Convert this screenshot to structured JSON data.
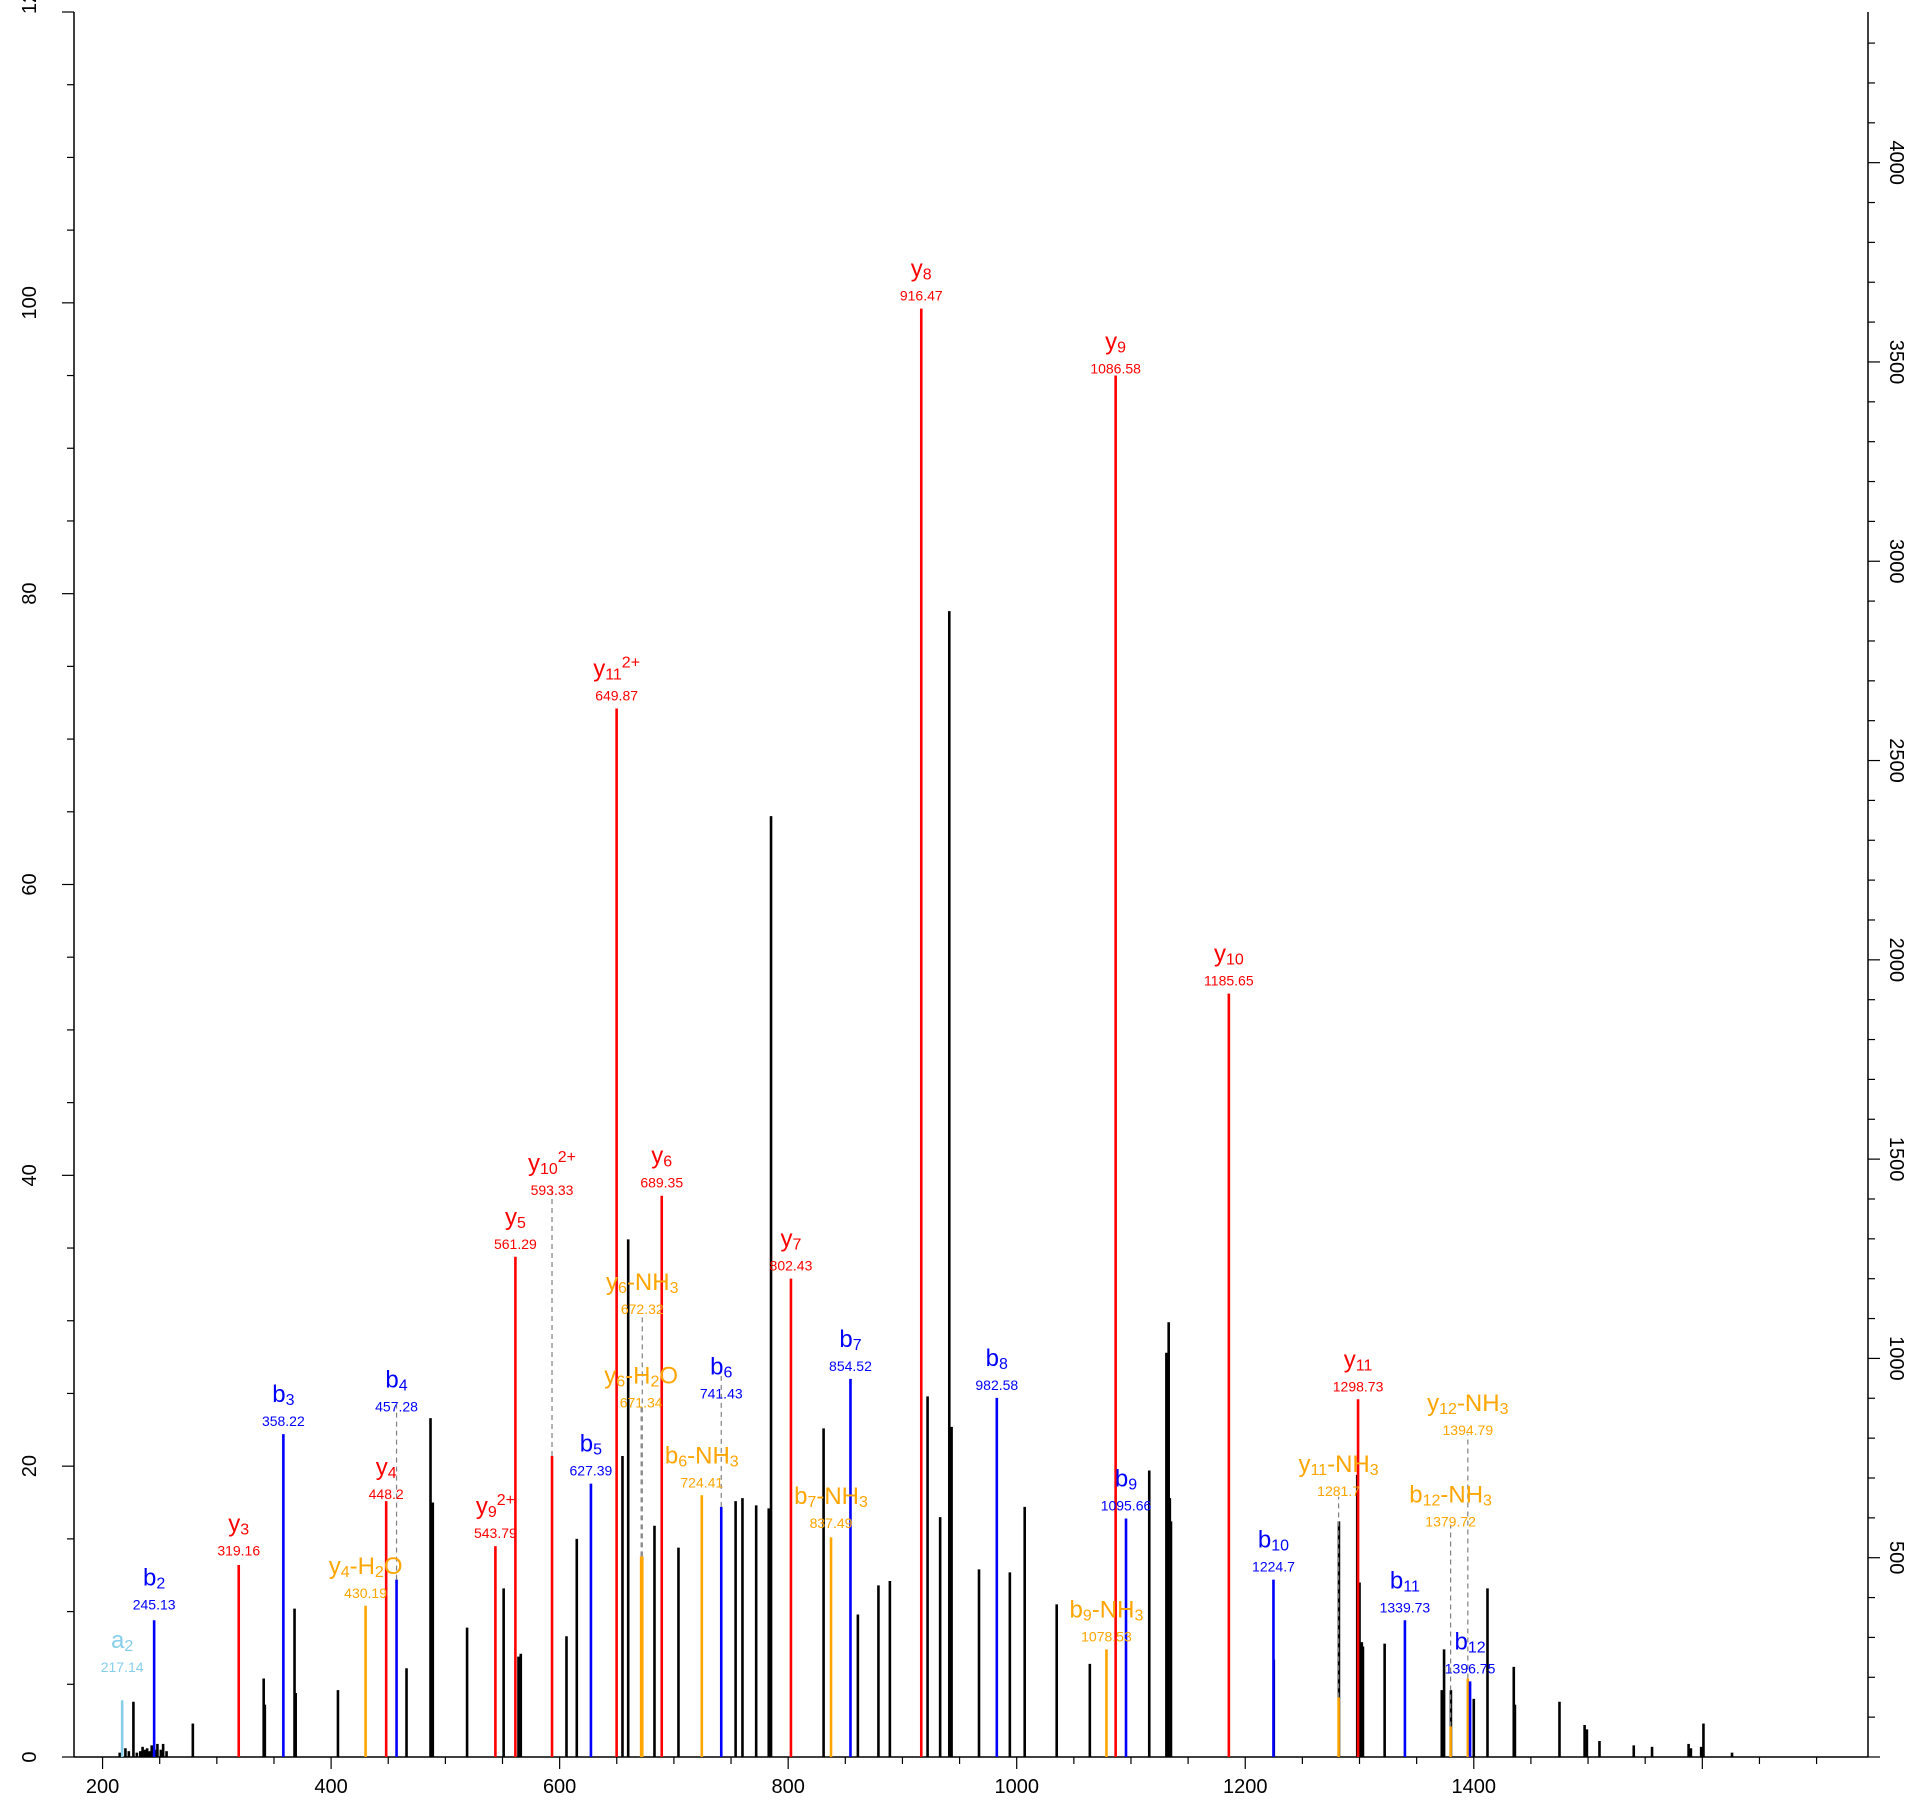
{
  "chart_data": {
    "type": "bar",
    "xlim": [
      175,
      1745
    ],
    "ylim": [
      0,
      120
    ],
    "y2lim": [
      0,
      4378
    ],
    "x_ticks": [
      200,
      400,
      600,
      800,
      1000,
      1200,
      1400
    ],
    "y_ticks": [
      0,
      20,
      40,
      60,
      80,
      100
    ],
    "y_top_tick_partial": "12",
    "y2_ticks": [
      500,
      1000,
      1500,
      2000,
      2500,
      3000,
      3500,
      4000
    ],
    "grid": false,
    "colors": {
      "y": "#ff0000",
      "b": "#0000ff",
      "a": "#87ceeb",
      "neutral_loss": "#ffa500",
      "unassigned": "#000000",
      "connector": "#808080"
    },
    "unassigned_peaks": [
      [
        215,
        0.3
      ],
      [
        220,
        0.6
      ],
      [
        223,
        0.4
      ],
      [
        227,
        3.8
      ],
      [
        230,
        0.3
      ],
      [
        233,
        0.4
      ],
      [
        235,
        0.7
      ],
      [
        237,
        0.5
      ],
      [
        239,
        0.6
      ],
      [
        241,
        0.4
      ],
      [
        243,
        0.8
      ],
      [
        246,
        0.5
      ],
      [
        248,
        0.9
      ],
      [
        251,
        0.5
      ],
      [
        253,
        0.9
      ],
      [
        256,
        0.4
      ],
      [
        279,
        2.3
      ],
      [
        341,
        5.4
      ],
      [
        342,
        3.6
      ],
      [
        368,
        10.2
      ],
      [
        369,
        4.4
      ],
      [
        406,
        4.6
      ],
      [
        466,
        6.1
      ],
      [
        487,
        23.3
      ],
      [
        489,
        17.5
      ],
      [
        519,
        8.9
      ],
      [
        551,
        11.6
      ],
      [
        564,
        6.9
      ],
      [
        566,
        7.1
      ],
      [
        606,
        8.3
      ],
      [
        615,
        15.0
      ],
      [
        655,
        20.7
      ],
      [
        660,
        35.6
      ],
      [
        683,
        15.9
      ],
      [
        704,
        14.4
      ],
      [
        754,
        17.6
      ],
      [
        760,
        17.8
      ],
      [
        772,
        17.3
      ],
      [
        783,
        17.1
      ],
      [
        785,
        64.7
      ],
      [
        831,
        22.6
      ],
      [
        861,
        9.8
      ],
      [
        879,
        11.8
      ],
      [
        889,
        12.1
      ],
      [
        922,
        24.8
      ],
      [
        933,
        16.5
      ],
      [
        941,
        78.8
      ],
      [
        943,
        22.7
      ],
      [
        967,
        12.9
      ],
      [
        994,
        12.7
      ],
      [
        1007,
        17.2
      ],
      [
        1035,
        10.5
      ],
      [
        1064,
        6.4
      ],
      [
        1116,
        19.7
      ],
      [
        1131,
        27.8
      ],
      [
        1133,
        29.9
      ],
      [
        1134,
        17.8
      ],
      [
        1135,
        16.2
      ],
      [
        1225,
        6.7
      ],
      [
        1282,
        16.2
      ],
      [
        1298,
        19.4
      ],
      [
        1300,
        12.0
      ],
      [
        1302,
        7.9
      ],
      [
        1303,
        7.6
      ],
      [
        1322,
        7.8
      ],
      [
        1372,
        4.6
      ],
      [
        1374,
        7.4
      ],
      [
        1380,
        4.6
      ],
      [
        1400,
        4.0
      ],
      [
        1412,
        11.6
      ],
      [
        1435,
        6.2
      ],
      [
        1436,
        3.6
      ],
      [
        1475,
        3.8
      ],
      [
        1497,
        2.2
      ],
      [
        1499,
        1.9
      ],
      [
        1510,
        1.1
      ],
      [
        1540,
        0.8
      ],
      [
        1556,
        0.7
      ],
      [
        1588,
        0.9
      ],
      [
        1590,
        0.6
      ],
      [
        1599,
        0.7
      ],
      [
        1601,
        2.3
      ],
      [
        1626,
        0.3
      ]
    ],
    "annotated_peaks": [
      {
        "ion": "y",
        "base": "a",
        "sub": "2",
        "sup": "",
        "mz_label": "217.14",
        "x": 217.14,
        "y": 3.9,
        "label_y": 7.5
      },
      {
        "ion": "b",
        "base": "b",
        "sub": "2",
        "sup": "",
        "mz_label": "245.13",
        "x": 245.13,
        "y": 9.4,
        "label_y": 11.8
      },
      {
        "ion": "y",
        "base": "y",
        "sub": "3",
        "sup": "",
        "mz_label": "319.16",
        "x": 319.16,
        "y": 13.2,
        "label_y": 15.5
      },
      {
        "ion": "b",
        "base": "b",
        "sub": "3",
        "sup": "",
        "mz_label": "358.22",
        "x": 358.22,
        "y": 22.2,
        "label_y": 24.4
      },
      {
        "ion": "nl",
        "base": "y",
        "sub": "4",
        "sup": "",
        "loss": "-H",
        "loss_sub": "2",
        "loss_tail": "O",
        "mz_label": "430.19",
        "x": 430.19,
        "y": 10.4,
        "label_y": 12.6
      },
      {
        "ion": "y",
        "base": "y",
        "sub": "4",
        "sup": "",
        "mz_label": "448.2",
        "x": 448.2,
        "y": 17.6,
        "label_y": 19.4
      },
      {
        "ion": "b",
        "base": "b",
        "sub": "4",
        "sup": "",
        "mz_label": "457.28",
        "x": 457.28,
        "y": 12.2,
        "label_y": 25.4,
        "connector_top": 24.2
      },
      {
        "ion": "y",
        "base": "y",
        "sub": "9",
        "sup": "2+",
        "mz_label": "543.79",
        "x": 543.79,
        "y": 14.5,
        "label_y": 16.7
      },
      {
        "ion": "y",
        "base": "y",
        "sub": "5",
        "sup": "",
        "mz_label": "561.29",
        "x": 561.29,
        "y": 34.4,
        "label_y": 36.6
      },
      {
        "ion": "y",
        "base": "y",
        "sub": "10",
        "sup": "2+",
        "mz_label": "593.33",
        "x": 593.33,
        "y": 20.7,
        "label_y": 40.3,
        "connector_top": 38.9
      },
      {
        "ion": "b",
        "base": "b",
        "sub": "5",
        "sup": "",
        "mz_label": "627.39",
        "x": 627.39,
        "y": 18.8,
        "label_y": 21.0
      },
      {
        "ion": "y",
        "base": "y",
        "sub": "11",
        "sup": "2+",
        "mz_label": "649.87",
        "x": 649.87,
        "y": 72.1,
        "label_y": 74.3
      },
      {
        "ion": "nl",
        "base": "y",
        "sub": "6",
        "sup": "",
        "loss": "-H",
        "loss_sub": "2",
        "loss_tail": "O",
        "mz_label": "671.34",
        "x": 671.34,
        "y": 13.8,
        "label_y": 25.7,
        "connector_top": 24.2
      },
      {
        "ion": "nl",
        "base": "y",
        "sub": "6",
        "sup": "",
        "loss": "-NH",
        "loss_sub": "3",
        "loss_tail": "",
        "mz_label": "672.32",
        "x": 672.32,
        "y": 13.8,
        "label_y": 32.1,
        "connector_top": 30.5
      },
      {
        "ion": "y",
        "base": "y",
        "sub": "6",
        "sup": "",
        "mz_label": "689.35",
        "x": 689.35,
        "y": 38.6,
        "label_y": 40.8
      },
      {
        "ion": "nl",
        "base": "b",
        "sub": "6",
        "sup": "",
        "loss": "-NH",
        "loss_sub": "3",
        "loss_tail": "",
        "mz_label": "724.41",
        "x": 724.41,
        "y": 18.0,
        "label_y": 20.2
      },
      {
        "ion": "b",
        "base": "b",
        "sub": "6",
        "sup": "",
        "mz_label": "741.43",
        "x": 741.43,
        "y": 17.2,
        "label_y": 26.3,
        "connector_top": 27.0
      },
      {
        "ion": "y",
        "base": "y",
        "sub": "7",
        "sup": "",
        "mz_label": "802.43",
        "x": 802.43,
        "y": 32.9,
        "label_y": 35.1
      },
      {
        "ion": "nl",
        "base": "b",
        "sub": "7",
        "sup": "",
        "loss": "-NH",
        "loss_sub": "3",
        "loss_tail": "",
        "mz_label": "837.49",
        "x": 837.49,
        "y": 15.1,
        "label_y": 17.4
      },
      {
        "ion": "b",
        "base": "b",
        "sub": "7",
        "sup": "",
        "mz_label": "854.52",
        "x": 854.52,
        "y": 26.0,
        "label_y": 28.2
      },
      {
        "ion": "y",
        "base": "y",
        "sub": "8",
        "sup": "",
        "mz_label": "916.47",
        "x": 916.47,
        "y": 99.6,
        "label_y": 101.8
      },
      {
        "ion": "b",
        "base": "b",
        "sub": "8",
        "sup": "",
        "mz_label": "982.58",
        "x": 982.58,
        "y": 24.7,
        "label_y": 26.9
      },
      {
        "ion": "nl",
        "base": "b",
        "sub": "9",
        "sup": "",
        "loss": "-NH",
        "loss_sub": "3",
        "loss_tail": "",
        "mz_label": "1078.53",
        "x": 1078.53,
        "y": 7.4,
        "label_y": 9.6
      },
      {
        "ion": "y",
        "base": "y",
        "sub": "9",
        "sup": "",
        "mz_label": "1086.58",
        "x": 1086.58,
        "y": 95.0,
        "label_y": 96.8
      },
      {
        "ion": "b",
        "base": "b",
        "sub": "9",
        "sup": "",
        "mz_label": "1095.66",
        "x": 1095.66,
        "y": 16.4,
        "label_y": 18.6
      },
      {
        "ion": "y",
        "base": "y",
        "sub": "10",
        "sup": "",
        "mz_label": "1185.65",
        "x": 1185.65,
        "y": 52.5,
        "label_y": 54.7
      },
      {
        "ion": "b",
        "base": "b",
        "sub": "10",
        "sup": "",
        "mz_label": "1224.7",
        "x": 1224.7,
        "y": 12.2,
        "label_y": 14.4
      },
      {
        "ion": "nl",
        "base": "y",
        "sub": "11",
        "sup": "",
        "loss": "-NH",
        "loss_sub": "3",
        "loss_tail": "",
        "mz_label": "1281.7",
        "x": 1281.7,
        "y": 4.1,
        "label_y": 19.6,
        "connector_top": 17.9
      },
      {
        "ion": "y",
        "base": "y",
        "sub": "11",
        "sup": "",
        "mz_label": "1298.73",
        "x": 1298.73,
        "y": 24.6,
        "label_y": 26.8
      },
      {
        "ion": "b",
        "base": "b",
        "sub": "11",
        "sup": "",
        "mz_label": "1339.73",
        "x": 1339.73,
        "y": 9.4,
        "label_y": 11.6
      },
      {
        "ion": "nl",
        "base": "b",
        "sub": "12",
        "sup": "",
        "loss": "-NH",
        "loss_sub": "3",
        "loss_tail": "",
        "mz_label": "1379.72",
        "x": 1379.72,
        "y": 2.1,
        "label_y": 17.5,
        "connector_top": 15.9
      },
      {
        "ion": "nl",
        "base": "y",
        "sub": "12",
        "sup": "",
        "loss": "-NH",
        "loss_sub": "3",
        "loss_tail": "",
        "mz_label": "1394.79",
        "x": 1394.79,
        "y": 5.4,
        "label_y": 23.8,
        "connector_top": 22.2
      },
      {
        "ion": "b",
        "base": "b",
        "sub": "12",
        "sup": "",
        "mz_label": "1396.75",
        "x": 1396.75,
        "y": 5.2,
        "label_y": 7.4
      }
    ]
  }
}
